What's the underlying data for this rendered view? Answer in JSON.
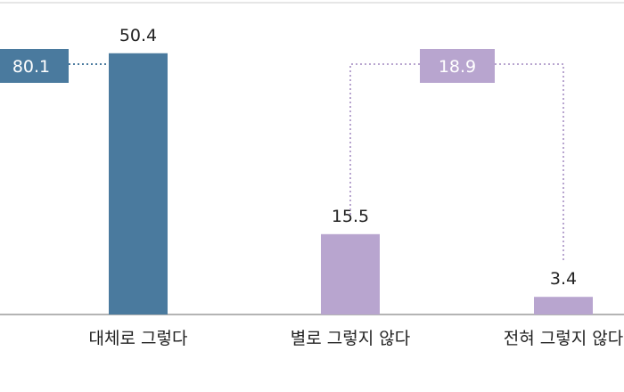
{
  "chart_data": {
    "type": "bar",
    "categories": [
      "대체로 그렇다",
      "별로 그렇지 않다",
      "전혀 그렇지 않다"
    ],
    "values": [
      50.4,
      15.5,
      3.4
    ],
    "value_labels": [
      "50.4",
      "15.5",
      "3.4"
    ],
    "bar_colors": [
      "#4a7a9e",
      "#b8a5cf",
      "#b8a5cf"
    ],
    "ylim": [
      0,
      55
    ],
    "xlabel": "",
    "ylabel": "",
    "summaries": [
      {
        "label": "80.1",
        "color": "#4a7a9e"
      },
      {
        "label": "18.9",
        "color": "#b8a5cf"
      }
    ],
    "grid": false
  }
}
